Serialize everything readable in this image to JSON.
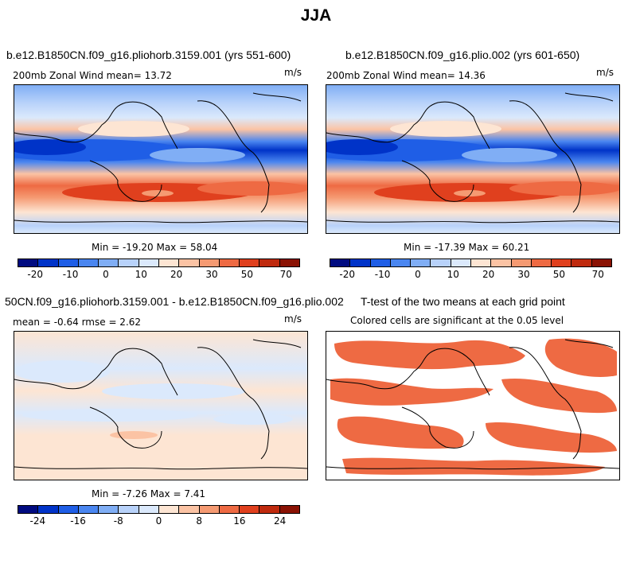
{
  "title": "JJA",
  "panels": {
    "a": {
      "title": "b.e12.B1850CN.f09_g16.pliohorb.3159.001 (yrs 551-600)",
      "left_label": "200mb Zonal Wind  mean=  13.72",
      "units": "m/s",
      "minmax": "Min = -19.20 Max =  58.04"
    },
    "b": {
      "title": "b.e12.B1850CN.f09_g16.plio.002 (yrs 601-650)",
      "left_label": "200mb Zonal Wind  mean=  14.36",
      "units": "m/s",
      "minmax": "Min = -17.39 Max =  60.21"
    },
    "c": {
      "title": "50CN.f09_g16.pliohorb.3159.001 - b.e12.B1850CN.f09_g16.plio.002",
      "left_label": "mean =  -0.64    rmse =   2.62",
      "units": "m/s",
      "minmax": "Min =  -7.26 Max =   7.41"
    },
    "d": {
      "title": "T-test of the two means at each grid point",
      "subtitle": "Colored cells are significant at the 0.05 level"
    }
  },
  "colorbars": {
    "abs": {
      "colors": [
        "#000b80",
        "#0033c8",
        "#1f5ee6",
        "#4a86f0",
        "#80aef5",
        "#b8d2fa",
        "#dbe9fc",
        "#fde5d3",
        "#fbc3a4",
        "#f59a72",
        "#ee6a43",
        "#e0401e",
        "#bf2a0e",
        "#8a1204"
      ],
      "tick_labels": [
        "-20",
        "-10",
        "0",
        "10",
        "20",
        "30",
        "50",
        "70"
      ],
      "tick_positions": [
        1,
        2,
        3,
        4,
        5,
        6,
        7,
        8,
        9,
        10,
        11,
        12,
        13
      ]
    },
    "diff": {
      "colors": [
        "#000b80",
        "#0033c8",
        "#1f5ee6",
        "#4a86f0",
        "#80aef5",
        "#b8d2fa",
        "#dbe9fc",
        "#fde5d3",
        "#fbc3a4",
        "#f59a72",
        "#ee6a43",
        "#e0401e",
        "#bf2a0e",
        "#8a1204"
      ],
      "tick_labels": [
        "-24",
        "-16",
        "-8",
        "0",
        "8",
        "16",
        "24"
      ]
    }
  },
  "chart_data": [
    {
      "type": "heatmap",
      "title": "b.e12.B1850CN.f09_g16.pliohorb.3159.001 (yrs 551-600)",
      "variable": "200mb Zonal Wind",
      "units": "m/s",
      "mean": 13.72,
      "min": -19.2,
      "max": 58.04,
      "levels": [
        -20,
        -15,
        -10,
        -5,
        0,
        5,
        10,
        15,
        20,
        25,
        30,
        40,
        50,
        60,
        70
      ],
      "colorbar_labels": [
        "-20",
        "-10",
        "0",
        "10",
        "20",
        "30",
        "50",
        "70"
      ]
    },
    {
      "type": "heatmap",
      "title": "b.e12.B1850CN.f09_g16.plio.002 (yrs 601-650)",
      "variable": "200mb Zonal Wind",
      "units": "m/s",
      "mean": 14.36,
      "min": -17.39,
      "max": 60.21,
      "levels": [
        -20,
        -15,
        -10,
        -5,
        0,
        5,
        10,
        15,
        20,
        25,
        30,
        40,
        50,
        60,
        70
      ],
      "colorbar_labels": [
        "-20",
        "-10",
        "0",
        "10",
        "20",
        "30",
        "50",
        "70"
      ]
    },
    {
      "type": "heatmap",
      "title": "50CN.f09_g16.pliohorb.3159.001 - b.e12.B1850CN.f09_g16.plio.002",
      "units": "m/s",
      "mean": -0.64,
      "rmse": 2.62,
      "min": -7.26,
      "max": 7.41,
      "colorbar_labels": [
        "-24",
        "-16",
        "-8",
        "0",
        "8",
        "16",
        "24"
      ]
    },
    {
      "type": "heatmap",
      "title": "T-test of the two means at each grid point",
      "subtitle": "Colored cells are significant at the 0.05 level",
      "significance_level": 0.05
    }
  ]
}
